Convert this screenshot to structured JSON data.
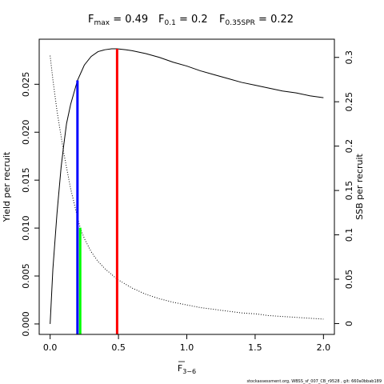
{
  "chart_data": {
    "type": "line",
    "title": {
      "fmax": {
        "main": "F",
        "sub": "max",
        "rest": " = 0.49"
      },
      "f01": {
        "main": "F",
        "sub": "0.1",
        "rest": " = 0.2"
      },
      "f035": {
        "main": "F",
        "sub": "0.35SPR",
        "rest": " = 0.22"
      }
    },
    "xlabel": {
      "main": "F",
      "sub": "3−6"
    },
    "ylabel_left": "Yield per recruit",
    "ylabel_right": "SSB per recruit",
    "xlim": [
      -0.08,
      2.08
    ],
    "ylim_left": [
      -0.00109,
      0.0297
    ],
    "ylim_right": [
      -0.0122,
      0.3205
    ],
    "x_ticks": [
      {
        "value": 0,
        "label": "0.0"
      },
      {
        "value": 0.5,
        "label": "0.5"
      },
      {
        "value": 1,
        "label": "1.0"
      },
      {
        "value": 1.5,
        "label": "1.5"
      },
      {
        "value": 2,
        "label": "2.0"
      }
    ],
    "y_left_ticks": [
      {
        "value": 0,
        "label": "0.000"
      },
      {
        "value": 0.005,
        "label": "0.005"
      },
      {
        "value": 0.01,
        "label": "0.010"
      },
      {
        "value": 0.015,
        "label": "0.015"
      },
      {
        "value": 0.02,
        "label": "0.020"
      },
      {
        "value": 0.025,
        "label": "0.025"
      }
    ],
    "y_right_ticks": [
      {
        "value": 0,
        "label": "0"
      },
      {
        "value": 0.05,
        "label": "0.05"
      },
      {
        "value": 0.1,
        "label": "0.1"
      },
      {
        "value": 0.15,
        "label": "0.15"
      },
      {
        "value": 0.2,
        "label": "0.2"
      },
      {
        "value": 0.25,
        "label": "0.25"
      },
      {
        "value": 0.3,
        "label": "0.3"
      }
    ],
    "series": [
      {
        "axis": "left",
        "style": "solid",
        "color": "#000000",
        "x": [
          0,
          0.02,
          0.05,
          0.08,
          0.1,
          0.12,
          0.15,
          0.2,
          0.25,
          0.3,
          0.35,
          0.4,
          0.45,
          0.49,
          0.55,
          0.6,
          0.7,
          0.8,
          0.9,
          1.0,
          1.1,
          1.2,
          1.3,
          1.4,
          1.5,
          1.6,
          1.7,
          1.8,
          1.9,
          2.0
        ],
        "y": [
          0,
          0.0057,
          0.0115,
          0.0163,
          0.0187,
          0.0209,
          0.0229,
          0.0254,
          0.027,
          0.0279,
          0.0284,
          0.0286,
          0.0287,
          0.0287,
          0.0286,
          0.0285,
          0.0282,
          0.0278,
          0.0273,
          0.0269,
          0.0264,
          0.026,
          0.0256,
          0.0252,
          0.0249,
          0.0246,
          0.0243,
          0.0241,
          0.0238,
          0.0236
        ]
      },
      {
        "axis": "right",
        "style": "dotted",
        "color": "#000000",
        "x": [
          0,
          0.02,
          0.05,
          0.1,
          0.15,
          0.2,
          0.22,
          0.25,
          0.3,
          0.35,
          0.4,
          0.49,
          0.6,
          0.7,
          0.8,
          0.9,
          1.0,
          1.1,
          1.2,
          1.3,
          1.4,
          1.5,
          1.6,
          1.7,
          1.8,
          1.9,
          2.0
        ],
        "y": [
          0.302,
          0.275,
          0.24,
          0.192,
          0.152,
          0.12,
          0.108,
          0.096,
          0.081,
          0.07,
          0.062,
          0.05,
          0.04,
          0.033,
          0.028,
          0.024,
          0.021,
          0.018,
          0.016,
          0.014,
          0.012,
          0.011,
          0.009,
          0.008,
          0.007,
          0.006,
          0.005
        ]
      }
    ],
    "reference_lines": [
      {
        "name": "F0.1",
        "x": 0.2,
        "y_top": 0.0254,
        "axis": "left",
        "color": "#0000ff"
      },
      {
        "name": "F0.35SPR",
        "x": 0.22,
        "y_top": 0.108,
        "axis": "right",
        "color": "#00ff00"
      },
      {
        "name": "Fmax",
        "x": 0.49,
        "y_top": 0.0287,
        "axis": "left",
        "color": "#ff0000"
      }
    ],
    "grid": false,
    "legend": "none"
  },
  "footer": "stockassessment.org, WBSS_sf_007_CB_r9528 , git: 660a0bbab189"
}
